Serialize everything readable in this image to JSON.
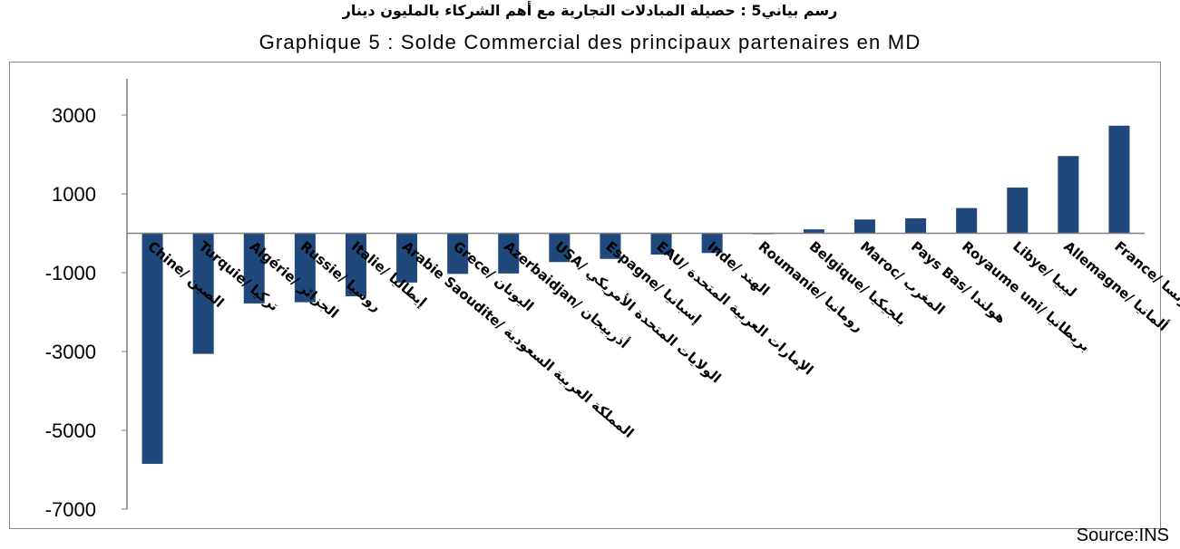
{
  "title_ar": "رسم بياني5 : حصيلة المبادلات التجارية مع أهم الشركاء بالمليون دينار",
  "title_fr": "Graphique 5 : Solde Commercial des principaux partenaires en MD",
  "source": "Source:INS",
  "colors": {
    "bar": "#1f497d",
    "axis": "#7f7f7f",
    "frame": "#888888"
  },
  "chart_data": {
    "type": "bar",
    "title": "Graphique 5 : Solde Commercial des principaux partenaires en MD",
    "xlabel": "",
    "ylabel": "",
    "ylim": [
      -7000,
      3000
    ],
    "yticks": [
      3000,
      1000,
      -1000,
      -3000,
      -5000,
      -7000
    ],
    "grid": false,
    "legend": "none",
    "categories": [
      "Chine/ الصين",
      "Turquie/ تركيا",
      "Algérie/ الجزائر",
      "Russie/ روسيا",
      "Italie/ إيطاليا",
      "Arabie Saoudite/ المملكة العربية السعودية",
      "Grece/ اليونان",
      "Azerbaidjan/ أذربيجان",
      "USA/ الولايات المتحدة الأمريكي",
      "Espagne/ إسبانيا",
      "EAU/ الإمارات العربية المتحدة",
      "Inde/ الهند",
      "Roumanie/ رومانيا",
      "Belgique/ بلجيكيا",
      "Maroc/ المغرب",
      "Pays Bas/ هولندا",
      "Royaume uni/ بريطانيا",
      "Libye/ ليبيا",
      "Allemagne/ ألمانيا",
      "France/ فرنسا"
    ],
    "values": [
      -5850,
      -3060,
      -1780,
      -1750,
      -1600,
      -1250,
      -1030,
      -1020,
      -730,
      -650,
      -540,
      -500,
      -20,
      100,
      350,
      380,
      640,
      1160,
      1960,
      2730
    ]
  }
}
